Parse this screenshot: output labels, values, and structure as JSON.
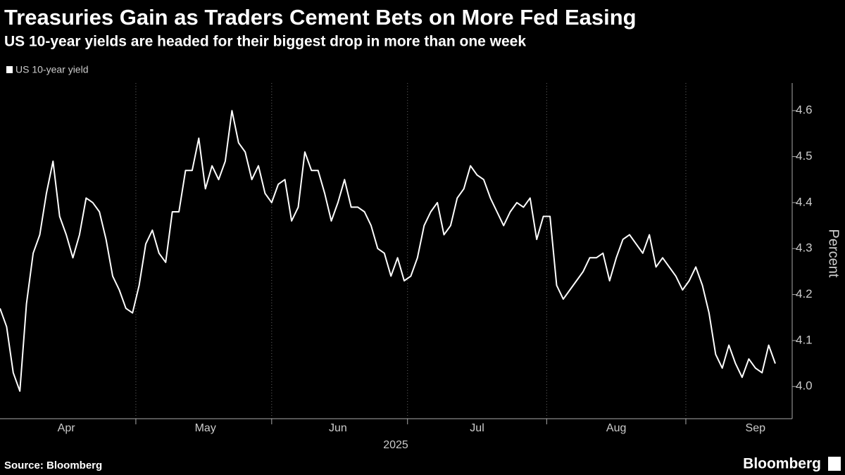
{
  "chart_data": {
    "type": "line",
    "title": "Treasuries Gain as Traders Cement Bets on More Fed Easing",
    "subtitle": "US 10-year yields are headed for their biggest drop  in more than one week",
    "x_label": "2025",
    "y_label": "Percent",
    "source": "Source: Bloomberg",
    "brand": "Bloomberg",
    "categories": [
      null,
      null,
      null,
      null,
      null,
      null,
      null,
      null,
      null,
      null,
      "Apr",
      null,
      null,
      null,
      null,
      null,
      null,
      null,
      null,
      null,
      null,
      null,
      null,
      null,
      null,
      null,
      null,
      null,
      null,
      null,
      null,
      "May",
      null,
      null,
      null,
      null,
      null,
      null,
      null,
      null,
      null,
      null,
      null,
      null,
      null,
      null,
      null,
      null,
      null,
      null,
      null,
      "Jun",
      null,
      null,
      null,
      null,
      null,
      null,
      null,
      null,
      null,
      null,
      null,
      null,
      null,
      null,
      null,
      null,
      null,
      null,
      null,
      null,
      "Jul",
      null,
      null,
      null,
      null,
      null,
      null,
      null,
      null,
      null,
      null,
      null,
      null,
      null,
      null,
      null,
      null,
      null,
      null,
      null,
      null,
      "Aug",
      null,
      null,
      null,
      null,
      null,
      null,
      null,
      null,
      null,
      null,
      null,
      null,
      null,
      null,
      null,
      null,
      null,
      null,
      null,
      null,
      "Sep",
      null,
      null,
      null
    ],
    "series": [
      {
        "name": "US 10-year yield",
        "color": "#ffffff",
        "values": [
          4.17,
          4.13,
          4.03,
          3.99,
          4.18,
          4.29,
          4.33,
          4.42,
          4.49,
          4.37,
          4.33,
          4.28,
          4.33,
          4.41,
          4.4,
          4.38,
          4.32,
          4.24,
          4.21,
          4.17,
          4.16,
          4.22,
          4.31,
          4.34,
          4.29,
          4.27,
          4.38,
          4.38,
          4.47,
          4.47,
          4.54,
          4.43,
          4.48,
          4.45,
          4.49,
          4.6,
          4.53,
          4.51,
          4.45,
          4.48,
          4.42,
          4.4,
          4.44,
          4.45,
          4.36,
          4.39,
          4.51,
          4.47,
          4.47,
          4.42,
          4.36,
          4.4,
          4.45,
          4.39,
          4.39,
          4.38,
          4.35,
          4.3,
          4.29,
          4.24,
          4.28,
          4.23,
          4.24,
          4.28,
          4.35,
          4.38,
          4.4,
          4.33,
          4.35,
          4.41,
          4.43,
          4.48,
          4.46,
          4.45,
          4.41,
          4.38,
          4.35,
          4.38,
          4.4,
          4.39,
          4.41,
          4.32,
          4.37,
          4.37,
          4.22,
          4.19,
          4.21,
          4.23,
          4.25,
          4.28,
          4.28,
          4.29,
          4.23,
          4.28,
          4.32,
          4.33,
          4.31,
          4.29,
          4.33,
          4.26,
          4.28,
          4.26,
          4.24,
          4.21,
          4.23,
          4.26,
          4.22,
          4.16,
          4.07,
          4.04,
          4.09,
          4.05,
          4.02,
          4.06,
          4.04,
          4.03,
          4.09,
          4.05
        ]
      }
    ],
    "ylim": [
      3.93,
      4.66
    ],
    "yticks": [
      {
        "value": 4,
        "label": "4.0"
      },
      4.1,
      4.2,
      4.3,
      4.4,
      4.5,
      4.6
    ],
    "grid": false
  }
}
